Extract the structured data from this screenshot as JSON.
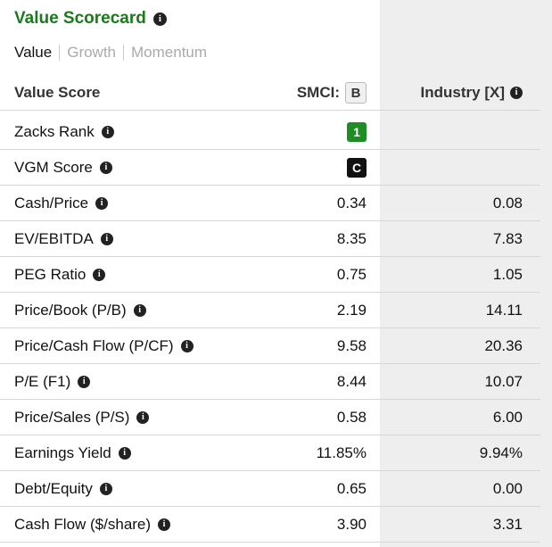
{
  "colors": {
    "title_green": "#1b7a1b",
    "rank_green": "#1e8e24",
    "vgm_black": "#111111",
    "industry_bg": "#eeeeee"
  },
  "title": "Value Scorecard",
  "tabs": [
    {
      "label": "Value",
      "active": true
    },
    {
      "label": "Growth",
      "active": false
    },
    {
      "label": "Momentum",
      "active": false
    }
  ],
  "header": {
    "col1": "Value Score",
    "col2": "SMCI:",
    "col2_badge": "B",
    "col3": "Industry [X]"
  },
  "rows": [
    {
      "label": "Zacks Rank",
      "smci": "1",
      "industry": ""
    },
    {
      "label": "VGM Score",
      "smci": "C",
      "industry": ""
    },
    {
      "label": "Cash/Price",
      "smci": "0.34",
      "industry": "0.08"
    },
    {
      "label": "EV/EBITDA",
      "smci": "8.35",
      "industry": "7.83"
    },
    {
      "label": "PEG Ratio",
      "smci": "0.75",
      "industry": "1.05"
    },
    {
      "label": "Price/Book (P/B)",
      "smci": "2.19",
      "industry": "14.11"
    },
    {
      "label": "Price/Cash Flow (P/CF)",
      "smci": "9.58",
      "industry": "20.36"
    },
    {
      "label": "P/E (F1)",
      "smci": "8.44",
      "industry": "10.07"
    },
    {
      "label": "Price/Sales (P/S)",
      "smci": "0.58",
      "industry": "6.00"
    },
    {
      "label": "Earnings Yield",
      "smci": "11.85%",
      "industry": "9.94%"
    },
    {
      "label": "Debt/Equity",
      "smci": "0.65",
      "industry": "0.00"
    },
    {
      "label": "Cash Flow ($/share)",
      "smci": "3.90",
      "industry": "3.31"
    }
  ],
  "icons": {
    "info": "info-icon"
  }
}
